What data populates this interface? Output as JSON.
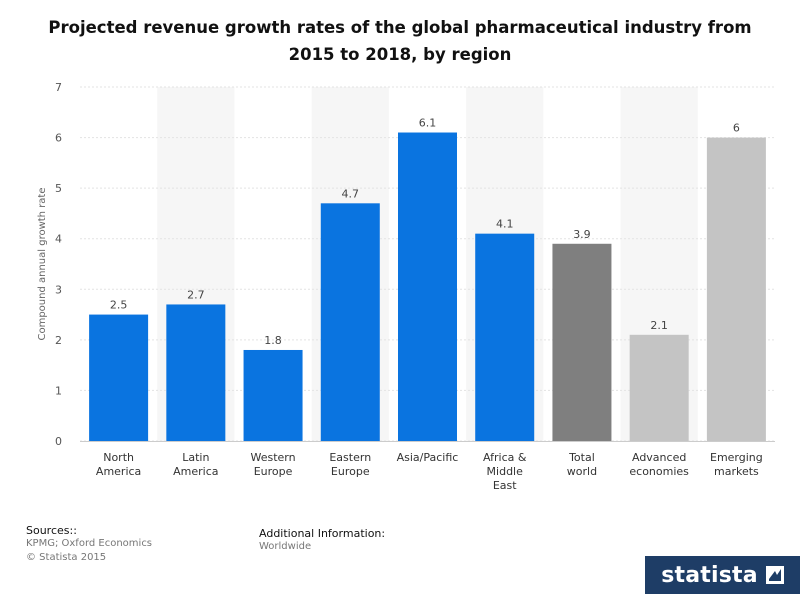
{
  "title": "Projected revenue growth rates of the global pharmaceutical industry from 2015 to 2018, by region",
  "chart_data": {
    "type": "bar",
    "title": "Projected revenue growth rates of the global pharmaceutical industry from 2015 to 2018, by region",
    "xlabel": "",
    "ylabel": "Compound annual growth rate",
    "ylim": [
      0,
      7
    ],
    "yticks": [
      0,
      1,
      2,
      3,
      4,
      5,
      6,
      7
    ],
    "grid": true,
    "categories": [
      [
        "North",
        "America"
      ],
      [
        "Latin",
        "America"
      ],
      [
        "Western",
        "Europe"
      ],
      [
        "Eastern",
        "Europe"
      ],
      [
        "Asia/Pacific"
      ],
      [
        "Africa &",
        "Middle",
        "East"
      ],
      [
        "Total",
        "world"
      ],
      [
        "Advanced",
        "economies"
      ],
      [
        "Emerging",
        "markets"
      ]
    ],
    "values": [
      2.5,
      2.7,
      1.8,
      4.7,
      6.1,
      4.1,
      3.9,
      2.1,
      6
    ],
    "value_labels": [
      "2.5",
      "2.7",
      "1.8",
      "4.7",
      "6.1",
      "4.1",
      "3.9",
      "2.1",
      "6"
    ],
    "bar_colors": [
      "#0a74e0",
      "#0a74e0",
      "#0a74e0",
      "#0a74e0",
      "#0a74e0",
      "#0a74e0",
      "#7f7f7f",
      "#c4c4c4",
      "#c4c4c4"
    ]
  },
  "footer": {
    "sources_heading": "Sources::",
    "sources_lines": [
      "KPMG; Oxford Economics",
      "© Statista 2015"
    ],
    "additional_heading": "Additional Information:",
    "additional_text": "Worldwide"
  },
  "brand": "statista",
  "colors": {
    "brand_bg": "#1e3d66",
    "axis_text": "#555555",
    "grid": "#e3e3e3"
  }
}
